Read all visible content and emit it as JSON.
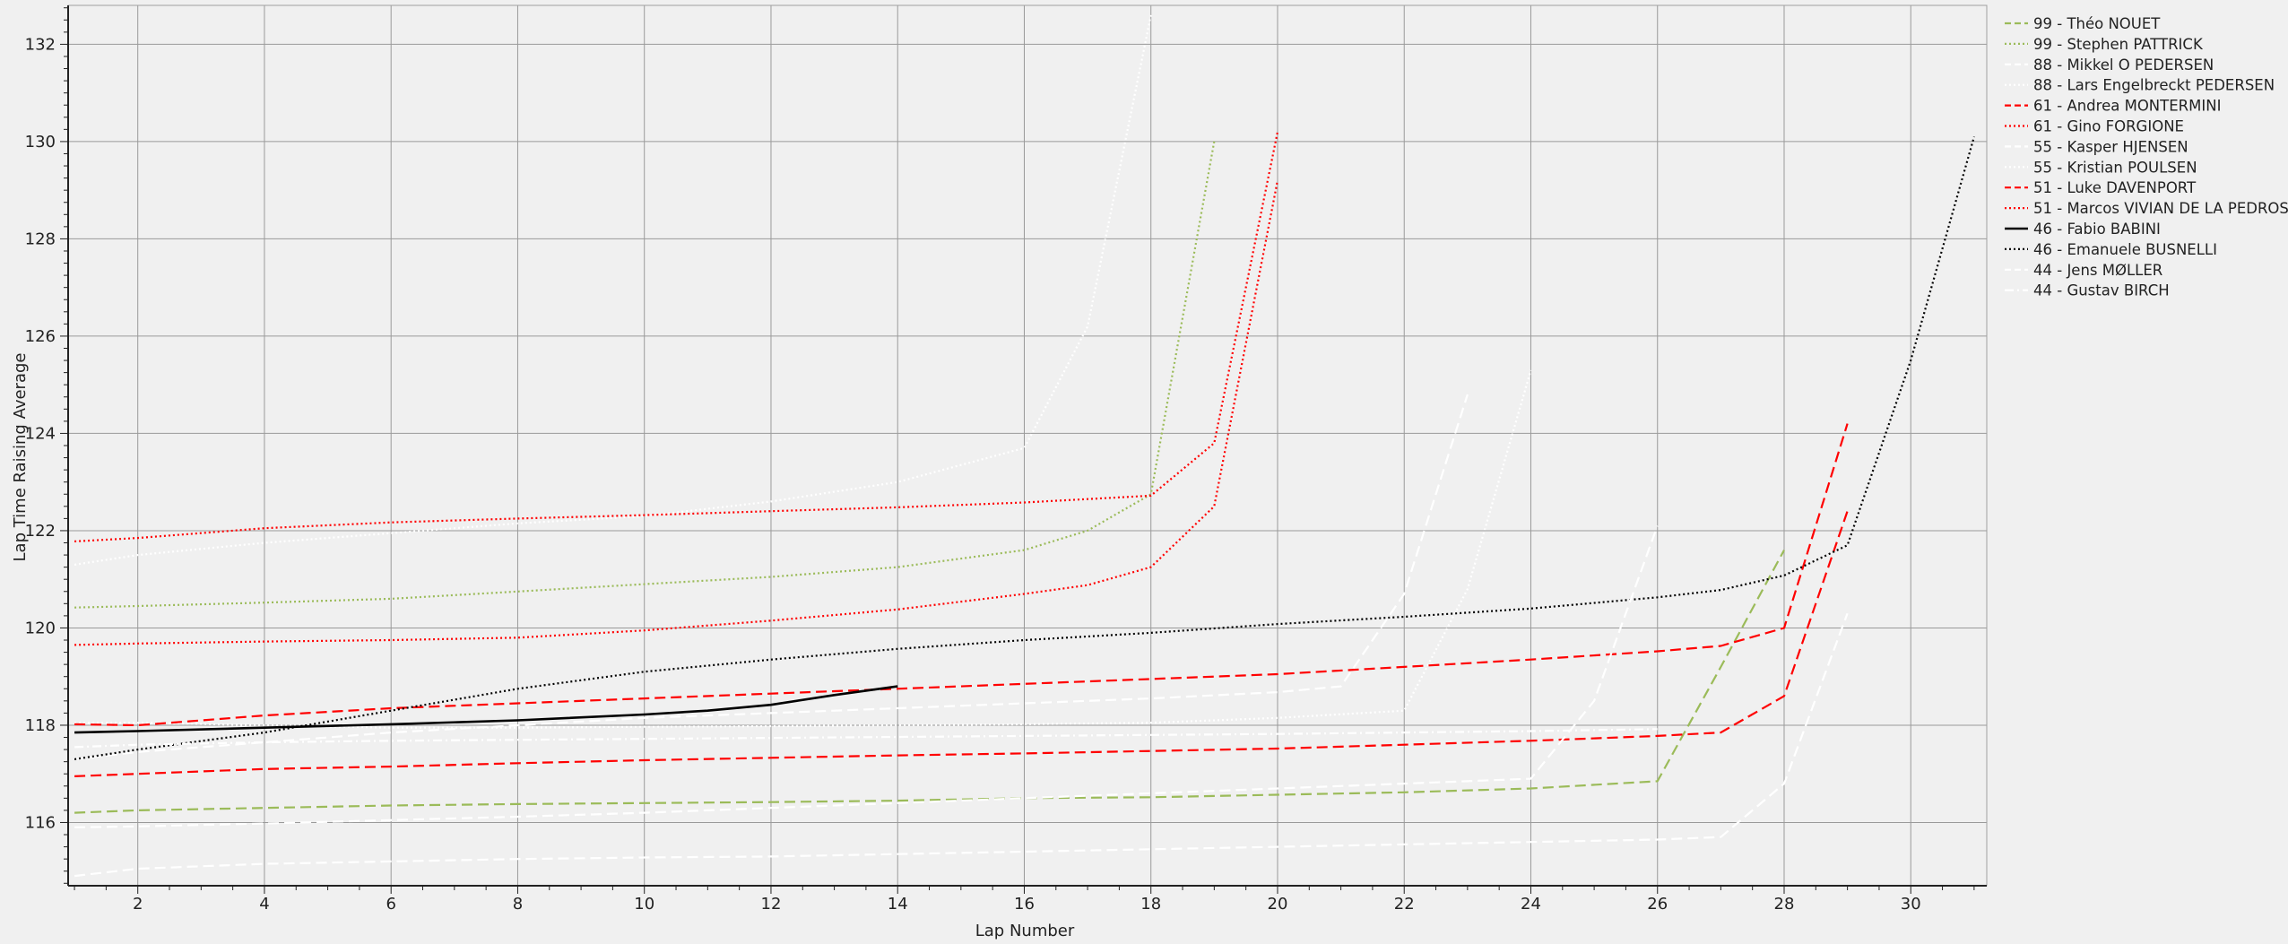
{
  "chart_data": {
    "type": "line",
    "title": "",
    "xlabel": "Lap Number",
    "ylabel": "Lap Time Raising Average",
    "xlim": [
      0.9,
      31.2
    ],
    "ylim": [
      114.7,
      132.8
    ],
    "x_ticks": [
      2,
      4,
      6,
      8,
      10,
      12,
      14,
      16,
      18,
      20,
      22,
      24,
      26,
      28,
      30
    ],
    "y_ticks": [
      116,
      118,
      120,
      122,
      124,
      126,
      128,
      130,
      132
    ],
    "grid": true,
    "legend_position": "right",
    "series": [
      {
        "name": "99 - Théo NOUET",
        "color": "#9bbb59",
        "dash": "dashed",
        "x": [
          1,
          2,
          4,
          6,
          8,
          10,
          12,
          14,
          16,
          18,
          20,
          22,
          24,
          26,
          27,
          28
        ],
        "y": [
          116.2,
          116.25,
          116.3,
          116.35,
          116.38,
          116.4,
          116.42,
          116.45,
          116.5,
          116.52,
          116.57,
          116.62,
          116.7,
          116.85,
          119.2,
          121.6
        ]
      },
      {
        "name": "99 - Stephen PATTRICK",
        "color": "#9bbb59",
        "dash": "dotted",
        "x": [
          1,
          2,
          4,
          6,
          8,
          10,
          12,
          14,
          16,
          17,
          18,
          19
        ],
        "y": [
          120.42,
          120.45,
          120.52,
          120.6,
          120.75,
          120.9,
          121.05,
          121.25,
          121.6,
          122.0,
          122.75,
          130.0
        ]
      },
      {
        "name": "88 - Mikkel O PEDERSEN",
        "color": "#ffffff",
        "dash": "dashed",
        "x": [
          1,
          2,
          4,
          6,
          8,
          10,
          12,
          14,
          16,
          18,
          20,
          22,
          24,
          26,
          27,
          28,
          29
        ],
        "y": [
          114.9,
          115.05,
          115.15,
          115.2,
          115.25,
          115.28,
          115.3,
          115.35,
          115.4,
          115.45,
          115.5,
          115.55,
          115.6,
          115.65,
          115.7,
          116.8,
          120.3
        ]
      },
      {
        "name": "88 - Lars Engelbreckt PEDERSEN",
        "color": "#ffffff",
        "dash": "dotted",
        "x": [
          1,
          2,
          4,
          6,
          8,
          10,
          12,
          14,
          16,
          17,
          18
        ],
        "y": [
          121.3,
          121.5,
          121.75,
          121.95,
          122.15,
          122.3,
          122.6,
          123.0,
          123.7,
          126.2,
          132.6
        ]
      },
      {
        "name": "61 - Andrea MONTERMINI",
        "color": "#ff0000",
        "dash": "dashed",
        "x": [
          1,
          2,
          4,
          6,
          8,
          10,
          12,
          14,
          16,
          18,
          20,
          22,
          24,
          26,
          27,
          28,
          29
        ],
        "y": [
          116.95,
          117.0,
          117.1,
          117.15,
          117.22,
          117.28,
          117.33,
          117.38,
          117.42,
          117.47,
          117.52,
          117.6,
          117.68,
          117.78,
          117.85,
          118.6,
          122.4
        ]
      },
      {
        "name": "61 - Gino FORGIONE",
        "color": "#ff0000",
        "dash": "dotted",
        "x": [
          1,
          2,
          4,
          6,
          8,
          10,
          12,
          14,
          16,
          17,
          18,
          19,
          20
        ],
        "y": [
          121.78,
          121.85,
          122.05,
          122.17,
          122.25,
          122.32,
          122.4,
          122.48,
          122.58,
          122.65,
          122.72,
          123.8,
          130.2
        ]
      },
      {
        "name": "55 - Kasper HJENSEN",
        "color": "#ffffff",
        "dash": "dashed",
        "x": [
          1,
          2,
          4,
          6,
          8,
          10,
          12,
          14,
          16,
          18,
          20,
          21,
          22,
          23
        ],
        "y": [
          117.3,
          117.45,
          117.65,
          117.85,
          118.0,
          118.15,
          118.25,
          118.35,
          118.45,
          118.55,
          118.68,
          118.8,
          120.7,
          124.8
        ]
      },
      {
        "name": "55 - Kristian POULSEN",
        "color": "#ffffff",
        "dash": "dotted",
        "x": [
          1,
          2,
          4,
          6,
          8,
          10,
          12,
          14,
          16,
          18,
          20,
          22,
          23,
          24
        ],
        "y": [
          118.05,
          118.05,
          118.0,
          117.95,
          117.95,
          117.97,
          117.98,
          118.0,
          118.02,
          118.05,
          118.15,
          118.3,
          120.8,
          125.3
        ]
      },
      {
        "name": "51 - Luke DAVENPORT",
        "color": "#ff0000",
        "dash": "dashed",
        "x": [
          1,
          2,
          4,
          6,
          8,
          10,
          12,
          14,
          16,
          18,
          20,
          22,
          24,
          26,
          27,
          28,
          29
        ],
        "y": [
          118.02,
          118.0,
          118.2,
          118.35,
          118.45,
          118.55,
          118.65,
          118.75,
          118.85,
          118.95,
          119.05,
          119.2,
          119.35,
          119.52,
          119.63,
          120.0,
          124.2
        ]
      },
      {
        "name": "51 - Marcos VIVIAN DE LA PEDROSA",
        "color": "#ff0000",
        "dash": "dotted",
        "x": [
          1,
          2,
          4,
          6,
          8,
          10,
          12,
          14,
          16,
          17,
          18,
          19,
          20
        ],
        "y": [
          119.65,
          119.68,
          119.72,
          119.75,
          119.8,
          119.95,
          120.15,
          120.38,
          120.7,
          120.88,
          121.25,
          122.5,
          129.2
        ]
      },
      {
        "name": "46 - Fabio BABINI",
        "color": "#000000",
        "dash": "solid",
        "x": [
          1,
          2,
          4,
          6,
          8,
          10,
          11,
          12,
          13,
          14
        ],
        "y": [
          117.85,
          117.88,
          117.95,
          118.02,
          118.1,
          118.22,
          118.3,
          118.42,
          118.62,
          118.8
        ]
      },
      {
        "name": "46 - Emanuele BUSNELLI",
        "color": "#000000",
        "dash": "dotted",
        "x": [
          1,
          2,
          4,
          6,
          8,
          10,
          12,
          14,
          16,
          18,
          20,
          22,
          24,
          26,
          27,
          28,
          29,
          30,
          31
        ],
        "y": [
          117.3,
          117.5,
          117.85,
          118.3,
          118.75,
          119.1,
          119.35,
          119.57,
          119.75,
          119.9,
          120.08,
          120.23,
          120.4,
          120.63,
          120.78,
          121.08,
          121.7,
          125.5,
          130.1
        ]
      },
      {
        "name": "44 - Jens MØLLER",
        "color": "#ffffff",
        "dash": "dashed",
        "x": [
          1,
          2,
          4,
          6,
          8,
          10,
          12,
          14,
          16,
          18,
          20,
          22,
          24,
          25,
          26
        ],
        "y": [
          115.9,
          115.92,
          115.98,
          116.05,
          116.12,
          116.2,
          116.3,
          116.4,
          116.5,
          116.6,
          116.7,
          116.8,
          116.9,
          118.5,
          122.1
        ]
      },
      {
        "name": "44 - Gustav BIRCH",
        "color": "#ffffff",
        "dash": "dashdot",
        "x": [
          1,
          2,
          4,
          6,
          8,
          10,
          12,
          14,
          16,
          18,
          20,
          22,
          24,
          26
        ],
        "y": [
          117.55,
          117.6,
          117.65,
          117.68,
          117.7,
          117.72,
          117.74,
          117.76,
          117.78,
          117.8,
          117.82,
          117.85,
          117.88,
          117.92
        ]
      }
    ]
  }
}
